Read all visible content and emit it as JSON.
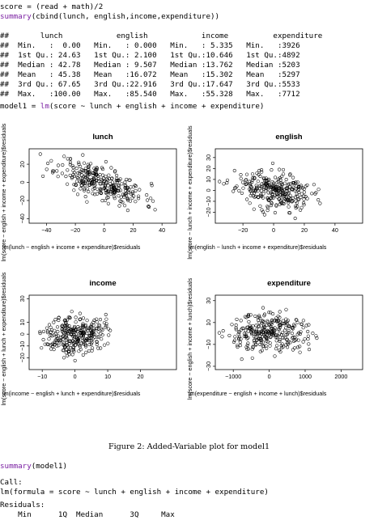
{
  "code_top": {
    "line1": "score = (read + math)/2",
    "line2_fn": "summary",
    "line2_rest": "(cbind(lunch, english,income,expenditure))"
  },
  "summary_table": [
    "##       lunch            english            income          expenditure",
    "##  Min.   :  0.00   Min.   : 0.000   Min.   : 5.335   Min.   :3926",
    "##  1st Qu.: 24.63   1st Qu.: 2.100   1st Qu.:10.646   1st Qu.:4892",
    "##  Median : 42.78   Median : 9.507   Median :13.762   Median :5203",
    "##  Mean   : 45.38   Mean   :16.072   Mean   :15.302   Mean   :5297",
    "##  3rd Qu.: 67.65   3rd Qu.:22.916   3rd Qu.:17.647   3rd Qu.:5533",
    "##  Max.   :100.00   Max.   :85.540   Max.   :55.328   Max.   :7712"
  ],
  "model_line": {
    "prefix": "model1 = ",
    "fn": "lm",
    "rest": "(score ~ lunch + english + income + expenditure)"
  },
  "chart_data": [
    {
      "type": "scatter",
      "title": "lunch",
      "xlabel": "lm(lunch ~ english + income + expenditure)$residuals",
      "ylabel": "lm(score ~ english + income + expenditure)$residuals",
      "xlim": [
        -52,
        50
      ],
      "ylim": [
        -45,
        37
      ],
      "xticks": [
        -40,
        -20,
        0,
        20,
        40
      ],
      "yticks": [
        -40,
        -20,
        0,
        20
      ],
      "cloud": {
        "x_mean": -2,
        "x_sd": 15,
        "slope": -0.55,
        "y_sd": 9,
        "n": 300,
        "seed": 11
      }
    },
    {
      "type": "scatter",
      "title": "english",
      "xlabel": "lm(english ~ lunch + income + expenditure)$residuals",
      "ylabel": "lm(score ~ lunch + income + expenditure)$residuals",
      "xlim": [
        -38,
        58
      ],
      "ylim": [
        -30,
        38
      ],
      "xticks": [
        -20,
        0,
        20,
        40
      ],
      "yticks": [
        -20,
        -10,
        0,
        10,
        20,
        30
      ],
      "cloud": {
        "x_mean": 0,
        "x_sd": 12,
        "slope": -0.25,
        "y_sd": 8,
        "n": 300,
        "seed": 23
      }
    },
    {
      "type": "scatter",
      "title": "income",
      "xlabel": "lm(income ~ english + lunch + expenditure)$residuals",
      "ylabel": "lm(score ~ english + lunch + expenditure)$residuals",
      "xlim": [
        -14,
        31
      ],
      "ylim": [
        -30,
        33
      ],
      "xticks": [
        -10,
        0,
        10,
        20
      ],
      "yticks": [
        -20,
        -10,
        0,
        10,
        30
      ],
      "cloud": {
        "x_mean": 0,
        "x_sd": 4.5,
        "slope": 0.25,
        "y_sd": 8,
        "n": 300,
        "seed": 37
      }
    },
    {
      "type": "scatter",
      "title": "expenditure",
      "xlabel": "lm(expenditure ~ english + income + lunch)$residuals",
      "ylabel": "lm(score ~ english + income + lunch)$residuals",
      "xlim": [
        -1500,
        2600
      ],
      "ylim": [
        -33,
        35
      ],
      "xticks": [
        -1000,
        0,
        1000,
        2000
      ],
      "yticks": [
        -30,
        -10,
        10,
        30
      ],
      "cloud": {
        "x_mean": 0,
        "x_sd": 550,
        "slope": 0.0015,
        "y_sd": 9,
        "n": 300,
        "seed": 51
      }
    }
  ],
  "caption": "Figure 2: Added-Variable plot for model1",
  "code_bottom": {
    "summary_fn": "summary",
    "summary_rest": "(model1)",
    "call_label": "Call:",
    "call_line": "lm(formula = score ~ lunch + english + income + expenditure)",
    "residuals_label": "Residuals:",
    "residuals_header": "    Min      1Q  Median      3Q     Max"
  }
}
